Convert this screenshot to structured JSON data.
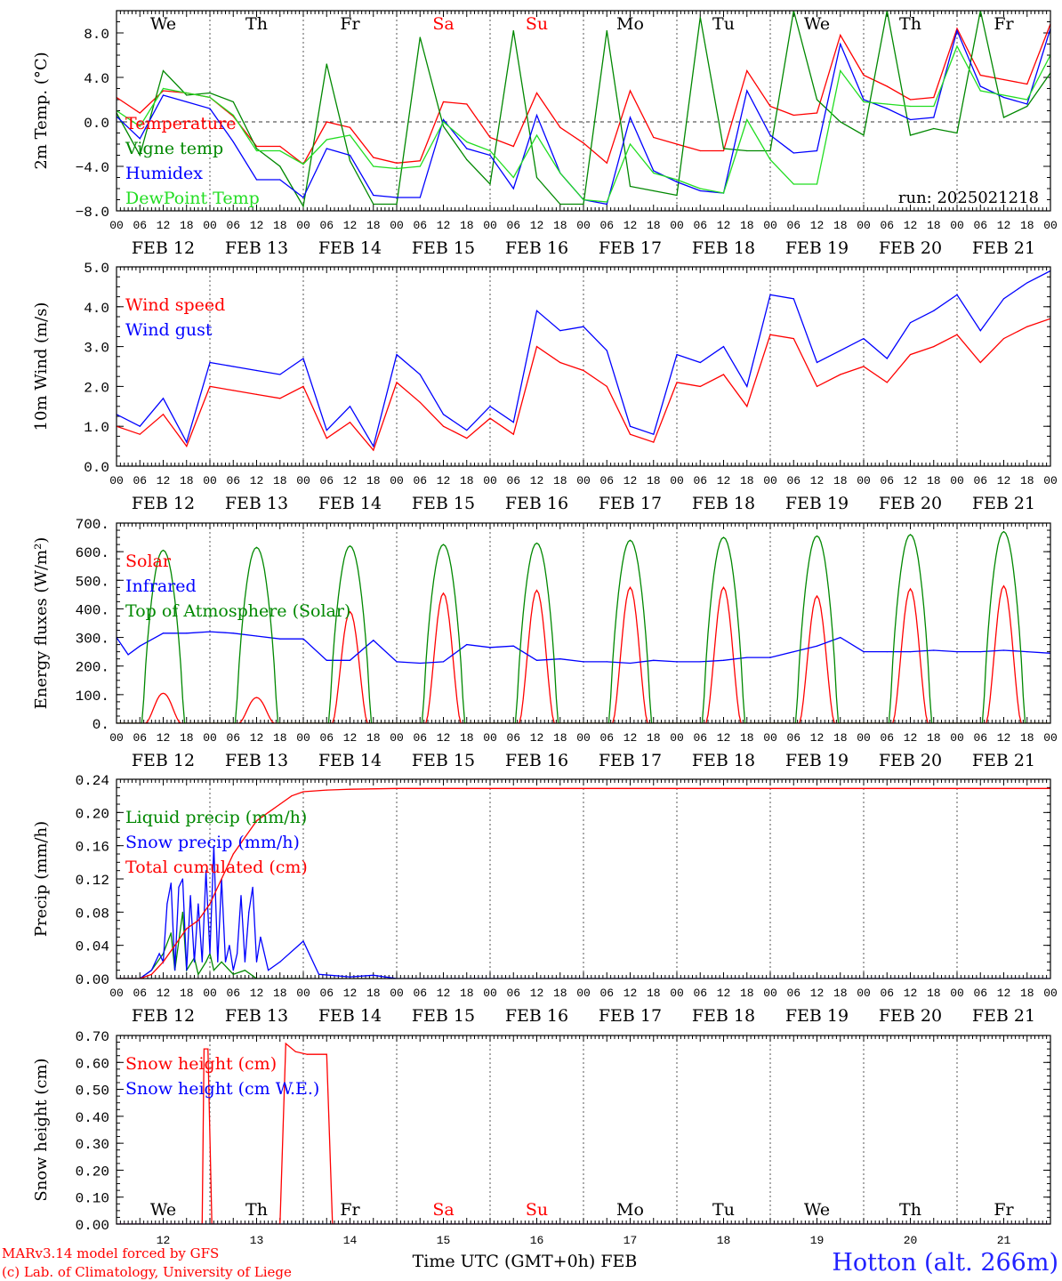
{
  "dates": [
    "FEB 12",
    "FEB 13",
    "FEB 14",
    "FEB 15",
    "FEB 16",
    "FEB 17",
    "FEB 18",
    "FEB 19",
    "FEB 20",
    "FEB 21"
  ],
  "hour_labels": [
    "00",
    "06",
    "12",
    "18"
  ],
  "end_hour_label": "00",
  "weekdays": [
    {
      "label": "We",
      "color": "#000000"
    },
    {
      "label": "Th",
      "color": "#000000"
    },
    {
      "label": "Fr",
      "color": "#000000"
    },
    {
      "label": "Sa",
      "color": "#ff0000"
    },
    {
      "label": "Su",
      "color": "#ff0000"
    },
    {
      "label": "Mo",
      "color": "#000000"
    },
    {
      "label": "Tu",
      "color": "#000000"
    },
    {
      "label": "We",
      "color": "#000000"
    },
    {
      "label": "Th",
      "color": "#000000"
    },
    {
      "label": "Fr",
      "color": "#000000"
    }
  ],
  "day_numbers": [
    "12",
    "13",
    "14",
    "15",
    "16",
    "17",
    "18",
    "19",
    "20",
    "21"
  ],
  "run_label": "run: 2025021218",
  "footer": {
    "model": "MARv3.14 model forced by GFS",
    "credit": "(c) Lab. of Climatology, University of Liege",
    "xlabel": "Time UTC (GMT+0h) FEB",
    "station": "Hotton (alt. 266m)"
  },
  "colors": {
    "red": "#ff0000",
    "green": "#008800",
    "blue": "#0000ff",
    "lime": "#22dd22"
  },
  "chart_data": [
    {
      "id": "temp",
      "type": "line",
      "ylabel": "2m Temp. (°C)",
      "ylim": [
        -8,
        10
      ],
      "ytick_values": [
        -8,
        -4,
        0,
        4,
        8
      ],
      "ytick_labels": [
        "−8.0",
        "−4.0",
        "0.0",
        "4.0",
        "8.0"
      ],
      "zero_line": true,
      "weekday_row": "top",
      "x_unit": "hours since FEB 12 00 UTC",
      "series": [
        {
          "name": "Temperature",
          "color": "#ff0000",
          "x": [
            0,
            6,
            12,
            18,
            24,
            30,
            36,
            42,
            48,
            54,
            60,
            66,
            72,
            78,
            84,
            90,
            96,
            102,
            108,
            114,
            120,
            126,
            132,
            138,
            144,
            150,
            156,
            162,
            168,
            174,
            180,
            186,
            192,
            198,
            204,
            210,
            216,
            222,
            228,
            234,
            240
          ],
          "y": [
            2.2,
            0.8,
            2.8,
            2.6,
            2.2,
            0.5,
            -2.2,
            -2.2,
            -3.8,
            0,
            -0.5,
            -3.2,
            -3.7,
            -3.5,
            1.8,
            1.6,
            -1.4,
            -2.2,
            2.6,
            -0.5,
            -1.9,
            -3.7,
            2.8,
            -1.4,
            -2.0,
            -2.6,
            -2.6,
            4.6,
            1.4,
            0.6,
            0.8,
            7.8,
            4.2,
            3.2,
            2.0,
            2.2,
            8.4,
            4.2,
            3.8,
            3.4,
            8.8
          ]
        },
        {
          "name": "Vigne temp",
          "color": "#008800",
          "x": [
            0,
            6,
            12,
            18,
            24,
            30,
            36,
            42,
            48,
            54,
            60,
            66,
            72,
            78,
            84,
            90,
            96,
            102,
            108,
            114,
            120,
            126,
            132,
            138,
            144,
            150,
            156,
            162,
            168,
            174,
            180,
            186,
            192,
            198,
            204,
            210,
            216,
            222,
            228,
            234,
            240
          ],
          "y": [
            0.8,
            -3.0,
            4.6,
            2.4,
            2.6,
            1.8,
            -2.4,
            -4.0,
            -7.6,
            5.2,
            -3.5,
            -7.4,
            -7.4,
            7.6,
            -0.4,
            -3.4,
            -5.6,
            8.2,
            -5.0,
            -7.4,
            -7.4,
            8.2,
            -5.8,
            -6.2,
            -6.6,
            9.4,
            -2.4,
            -2.6,
            -2.6,
            10,
            2.0,
            0.0,
            -1.2,
            10,
            -1.2,
            -0.6,
            -1.0,
            10,
            0.4,
            1.4,
            4.4
          ]
        },
        {
          "name": "Humidex",
          "color": "#0000ff",
          "x": [
            0,
            6,
            12,
            18,
            24,
            30,
            36,
            42,
            48,
            54,
            60,
            66,
            72,
            78,
            84,
            90,
            96,
            102,
            108,
            114,
            120,
            126,
            132,
            138,
            144,
            150,
            156,
            162,
            168,
            174,
            180,
            186,
            192,
            198,
            204,
            210,
            216,
            222,
            228,
            234,
            240
          ],
          "y": [
            0.5,
            -1.5,
            2.4,
            1.8,
            1.2,
            -1.8,
            -5.2,
            -5.2,
            -6.8,
            -2.4,
            -3.0,
            -6.6,
            -6.8,
            -6.8,
            0.2,
            -2.4,
            -3.0,
            -6.0,
            0.6,
            -4.6,
            -7.0,
            -7.4,
            0.4,
            -4.4,
            -5.4,
            -6.2,
            -6.4,
            2.8,
            -1.2,
            -2.8,
            -2.6,
            7.0,
            2.0,
            1.2,
            0.2,
            0.4,
            8.2,
            3.2,
            2.2,
            1.6,
            8.4
          ]
        },
        {
          "name": "DewPoint Temp",
          "color": "#22dd22",
          "x": [
            0,
            6,
            12,
            18,
            24,
            30,
            36,
            42,
            48,
            54,
            60,
            66,
            72,
            78,
            84,
            90,
            96,
            102,
            108,
            114,
            120,
            126,
            132,
            138,
            144,
            150,
            156,
            162,
            168,
            174,
            180,
            186,
            192,
            198,
            204,
            210,
            216,
            222,
            228,
            234,
            240
          ],
          "y": [
            1.0,
            -0.4,
            3.0,
            2.6,
            2.2,
            0.6,
            -2.6,
            -2.6,
            -3.8,
            -1.6,
            -1.2,
            -4.0,
            -4.2,
            -4.0,
            0.0,
            -1.8,
            -2.6,
            -5.0,
            -1.2,
            -4.6,
            -7.0,
            -7.2,
            -2.0,
            -4.6,
            -5.2,
            -6.0,
            -6.4,
            0.2,
            -3.4,
            -5.6,
            -5.6,
            4.6,
            1.8,
            1.6,
            1.4,
            1.4,
            6.8,
            2.8,
            2.4,
            2.0,
            6.0
          ]
        }
      ]
    },
    {
      "id": "wind",
      "type": "line",
      "ylabel": "10m Wind (m/s)",
      "ylim": [
        0,
        5
      ],
      "ytick_values": [
        0,
        1,
        2,
        3,
        4,
        5
      ],
      "ytick_labels": [
        "0.0",
        "1.0",
        "2.0",
        "3.0",
        "4.0",
        "5.0"
      ],
      "x_unit": "hours since FEB 12 00 UTC",
      "series": [
        {
          "name": "Wind speed",
          "color": "#ff0000",
          "x": [
            0,
            6,
            12,
            18,
            24,
            30,
            36,
            42,
            48,
            54,
            60,
            66,
            72,
            78,
            84,
            90,
            96,
            102,
            108,
            114,
            120,
            126,
            132,
            138,
            144,
            150,
            156,
            162,
            168,
            174,
            180,
            186,
            192,
            198,
            204,
            210,
            216,
            222,
            228,
            234,
            240
          ],
          "y": [
            1.0,
            0.8,
            1.3,
            0.5,
            2.0,
            1.9,
            1.8,
            1.7,
            2.0,
            0.7,
            1.1,
            0.4,
            2.1,
            1.6,
            1.0,
            0.7,
            1.2,
            0.8,
            3.0,
            2.6,
            2.4,
            2.0,
            0.8,
            0.6,
            2.1,
            2.0,
            2.3,
            1.5,
            3.3,
            3.2,
            2.0,
            2.3,
            2.5,
            2.1,
            2.8,
            3.0,
            3.3,
            2.6,
            3.2,
            3.5,
            3.7
          ]
        },
        {
          "name": "Wind gust",
          "color": "#0000ff",
          "x": [
            0,
            6,
            12,
            18,
            24,
            30,
            36,
            42,
            48,
            54,
            60,
            66,
            72,
            78,
            84,
            90,
            96,
            102,
            108,
            114,
            120,
            126,
            132,
            138,
            144,
            150,
            156,
            162,
            168,
            174,
            180,
            186,
            192,
            198,
            204,
            210,
            216,
            222,
            228,
            234,
            240
          ],
          "y": [
            1.3,
            1.0,
            1.7,
            0.6,
            2.6,
            2.5,
            2.4,
            2.3,
            2.7,
            0.9,
            1.5,
            0.5,
            2.8,
            2.3,
            1.3,
            0.9,
            1.5,
            1.1,
            3.9,
            3.4,
            3.5,
            2.9,
            1.0,
            0.8,
            2.8,
            2.6,
            3.0,
            2.0,
            4.3,
            4.2,
            2.6,
            2.9,
            3.2,
            2.7,
            3.6,
            3.9,
            4.3,
            3.4,
            4.2,
            4.6,
            4.9
          ]
        }
      ]
    },
    {
      "id": "energy",
      "type": "line",
      "ylabel": "Energy fluxes (W/m²)",
      "ylim": [
        0,
        700
      ],
      "ytick_values": [
        0,
        100,
        200,
        300,
        400,
        500,
        600,
        700
      ],
      "ytick_labels": [
        "0.",
        "100.",
        "200.",
        "300.",
        "400.",
        "500.",
        "600.",
        "700."
      ],
      "x_unit": "hours since FEB 12 00 UTC",
      "series": [
        {
          "name": "Solar",
          "color": "#ff0000",
          "solar_peaks": [
            105,
            90,
            390,
            455,
            465,
            475,
            475,
            445,
            470,
            480
          ]
        },
        {
          "name": "Infrared",
          "color": "#0000ff",
          "x": [
            0,
            3,
            6,
            12,
            18,
            24,
            30,
            36,
            42,
            48,
            54,
            60,
            66,
            72,
            78,
            84,
            90,
            96,
            102,
            108,
            114,
            120,
            126,
            132,
            138,
            144,
            150,
            156,
            162,
            168,
            174,
            180,
            186,
            192,
            198,
            204,
            210,
            216,
            222,
            228,
            234,
            240
          ],
          "y": [
            300,
            240,
            270,
            315,
            315,
            320,
            315,
            305,
            295,
            295,
            220,
            220,
            290,
            215,
            210,
            215,
            275,
            265,
            270,
            220,
            225,
            215,
            215,
            210,
            220,
            215,
            215,
            220,
            230,
            230,
            250,
            270,
            300,
            250,
            250,
            250,
            255,
            250,
            250,
            255,
            250,
            245
          ]
        },
        {
          "name": "Top of Atmosphere (Solar)",
          "color": "#008800",
          "toa_peaks": [
            605,
            615,
            620,
            625,
            630,
            640,
            650,
            655,
            660,
            670
          ]
        }
      ]
    },
    {
      "id": "precip",
      "type": "line",
      "ylabel": "Precip (mm/h)",
      "ylim": [
        0,
        0.24
      ],
      "ytick_values": [
        0,
        0.04,
        0.08,
        0.12,
        0.16,
        0.2,
        0.24
      ],
      "ytick_labels": [
        "0.00",
        "0.04",
        "0.08",
        "0.12",
        "0.16",
        "0.20",
        "0.24"
      ],
      "x_unit": "hours since FEB 12 00 UTC",
      "series": [
        {
          "name": "Liquid precip (mm/h)",
          "color": "#008800",
          "x": [
            0,
            6,
            9,
            12,
            14,
            15,
            17,
            18,
            20,
            21,
            23,
            24,
            25,
            27,
            30,
            33,
            36,
            48
          ],
          "y": [
            0,
            0,
            0.01,
            0.03,
            0.055,
            0.01,
            0.08,
            0.01,
            0.025,
            0.005,
            0.02,
            0.03,
            0.01,
            0.02,
            0.005,
            0.01,
            0,
            0
          ]
        },
        {
          "name": "Snow precip (mm/h)",
          "color": "#0000ff",
          "x": [
            0,
            6,
            9,
            11,
            12,
            13,
            14,
            15,
            16,
            17,
            18,
            19,
            20,
            21,
            22,
            23,
            24,
            25,
            26,
            27,
            28,
            29,
            30,
            31,
            32,
            33,
            34,
            35,
            36,
            37,
            39,
            42,
            48,
            52,
            60,
            66,
            72,
            240
          ],
          "y": [
            0,
            0,
            0.01,
            0.03,
            0.02,
            0.09,
            0.115,
            0.01,
            0.11,
            0.12,
            0.01,
            0.1,
            0.02,
            0.09,
            0.02,
            0.13,
            0.03,
            0.16,
            0.02,
            0.12,
            0.02,
            0.04,
            0.01,
            0.03,
            0.1,
            0.02,
            0.08,
            0.11,
            0.02,
            0.05,
            0.01,
            0.02,
            0.045,
            0.005,
            0.002,
            0.004,
            0,
            0
          ]
        },
        {
          "name": "Total cumulated (cm)",
          "color": "#ff0000",
          "x": [
            0,
            6,
            9,
            12,
            15,
            18,
            21,
            24,
            27,
            30,
            33,
            36,
            39,
            42,
            45,
            48,
            54,
            60,
            72,
            96,
            240
          ],
          "y": [
            0,
            0,
            0.005,
            0.02,
            0.04,
            0.06,
            0.07,
            0.09,
            0.12,
            0.15,
            0.17,
            0.19,
            0.2,
            0.21,
            0.22,
            0.225,
            0.227,
            0.228,
            0.229,
            0.229,
            0.229
          ]
        }
      ]
    },
    {
      "id": "snow",
      "type": "line",
      "ylabel": "Snow height (cm)",
      "ylim": [
        0,
        0.7
      ],
      "ytick_values": [
        0,
        0.1,
        0.2,
        0.3,
        0.4,
        0.5,
        0.6,
        0.7
      ],
      "ytick_labels": [
        "0.00",
        "0.10",
        "0.20",
        "0.30",
        "0.40",
        "0.50",
        "0.60",
        "0.70"
      ],
      "weekday_row": "bottom",
      "x_unit": "hours since FEB 12 00 UTC",
      "series": [
        {
          "name": "Snow height (cm)",
          "color": "#ff0000",
          "x": [
            0,
            22,
            22.5,
            23.5,
            24.5,
            42,
            43.5,
            46,
            49,
            54,
            55.5,
            240
          ],
          "y": [
            0,
            0,
            0.65,
            0.65,
            0,
            0,
            0.67,
            0.64,
            0.63,
            0.63,
            0,
            0
          ]
        },
        {
          "name": "Snow height (cm W.E.)",
          "color": "#0000ff",
          "x": [
            0,
            240
          ],
          "y": [
            0,
            0
          ]
        }
      ]
    }
  ]
}
